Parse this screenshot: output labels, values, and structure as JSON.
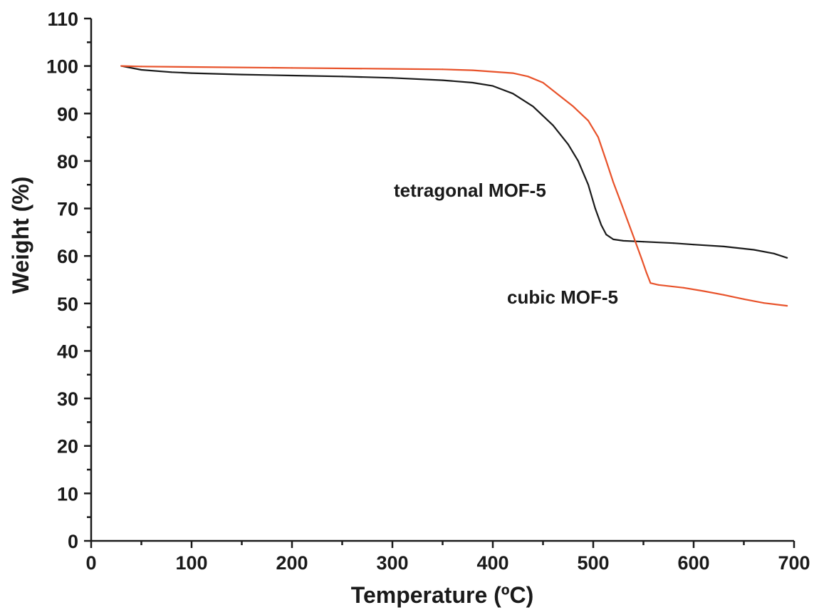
{
  "chart_data": {
    "type": "line",
    "xlabel": "Temperature (ºC)",
    "ylabel": "Weight (%)",
    "xlim": [
      0,
      700
    ],
    "ylim": [
      0,
      110
    ],
    "x_ticks": [
      0,
      100,
      200,
      300,
      400,
      500,
      600,
      700
    ],
    "y_ticks": [
      0,
      10,
      20,
      30,
      40,
      50,
      60,
      70,
      80,
      90,
      100,
      110
    ],
    "grid": false,
    "legend": "none",
    "annotations": [
      {
        "text": "tetragonal MOF-5",
        "series": "tetragonal MOF-5"
      },
      {
        "text": "cubic MOF-5",
        "series": "cubic MOF-5"
      }
    ],
    "series": [
      {
        "name": "tetragonal MOF-5",
        "color": "#1a1a1a",
        "points": [
          [
            30,
            100
          ],
          [
            50,
            99.2
          ],
          [
            80,
            98.7
          ],
          [
            100,
            98.5
          ],
          [
            150,
            98.2
          ],
          [
            200,
            98.0
          ],
          [
            250,
            97.8
          ],
          [
            300,
            97.5
          ],
          [
            350,
            97.0
          ],
          [
            380,
            96.5
          ],
          [
            400,
            95.8
          ],
          [
            420,
            94.2
          ],
          [
            440,
            91.5
          ],
          [
            460,
            87.5
          ],
          [
            475,
            83.5
          ],
          [
            485,
            80.0
          ],
          [
            495,
            75.0
          ],
          [
            502,
            70.0
          ],
          [
            508,
            66.5
          ],
          [
            513,
            64.5
          ],
          [
            520,
            63.5
          ],
          [
            530,
            63.2
          ],
          [
            550,
            63.0
          ],
          [
            580,
            62.7
          ],
          [
            600,
            62.4
          ],
          [
            630,
            62.0
          ],
          [
            660,
            61.3
          ],
          [
            680,
            60.5
          ],
          [
            693,
            59.6
          ]
        ]
      },
      {
        "name": "cubic MOF-5",
        "color": "#e8522a",
        "points": [
          [
            30,
            100
          ],
          [
            50,
            99.9
          ],
          [
            100,
            99.8
          ],
          [
            200,
            99.6
          ],
          [
            300,
            99.4
          ],
          [
            350,
            99.3
          ],
          [
            380,
            99.1
          ],
          [
            400,
            98.8
          ],
          [
            420,
            98.5
          ],
          [
            435,
            97.8
          ],
          [
            450,
            96.5
          ],
          [
            465,
            94.0
          ],
          [
            480,
            91.5
          ],
          [
            495,
            88.5
          ],
          [
            505,
            85.0
          ],
          [
            513,
            80.0
          ],
          [
            520,
            75.5
          ],
          [
            528,
            71.0
          ],
          [
            535,
            67.0
          ],
          [
            542,
            63.0
          ],
          [
            548,
            59.5
          ],
          [
            553,
            56.5
          ],
          [
            557,
            54.3
          ],
          [
            565,
            53.9
          ],
          [
            590,
            53.3
          ],
          [
            610,
            52.6
          ],
          [
            630,
            51.8
          ],
          [
            650,
            50.9
          ],
          [
            670,
            50.1
          ],
          [
            693,
            49.5
          ]
        ]
      }
    ]
  }
}
